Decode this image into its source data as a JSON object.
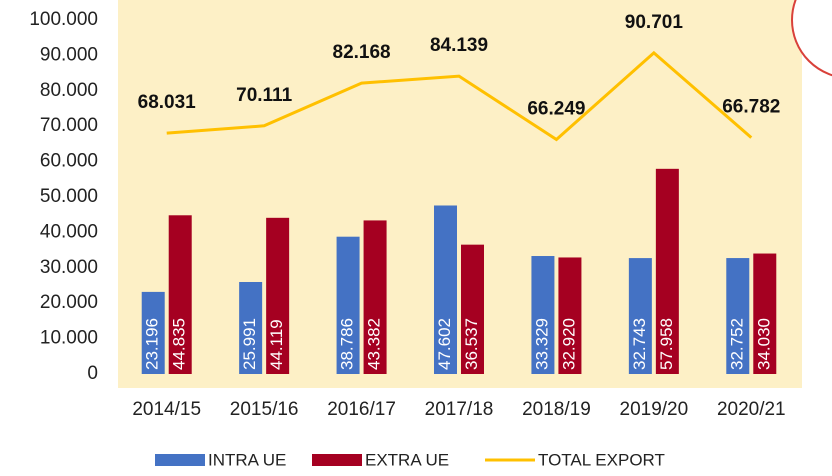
{
  "chart_data": {
    "type": "bar_line",
    "categories": [
      "2014/15",
      "2015/16",
      "2016/17",
      "2017/18",
      "2018/19",
      "2019/20",
      "2020/21"
    ],
    "series": [
      {
        "name": "INTRA UE",
        "type": "bar",
        "color": "#4472c4",
        "values": [
          23196,
          25991,
          38786,
          47602,
          33329,
          32743,
          32752
        ],
        "value_labels": [
          "23.196",
          "25.991",
          "38.786",
          "47.602",
          "33.329",
          "32.743",
          "32.752"
        ]
      },
      {
        "name": "EXTRA UE",
        "type": "bar",
        "color": "#a50021",
        "values": [
          44835,
          44119,
          43382,
          36537,
          32920,
          57958,
          34030
        ],
        "value_labels": [
          "44.835",
          "44.119",
          "43.382",
          "36.537",
          "32.920",
          "57.958",
          "34.030"
        ]
      },
      {
        "name": "TOTAL EXPORT",
        "type": "line",
        "color": "#ffc000",
        "values": [
          68031,
          70111,
          82168,
          84139,
          66249,
          90701,
          66782
        ],
        "value_labels": [
          "68.031",
          "70.111",
          "82.168",
          "84.139",
          "66.249",
          "90.701",
          "66.782"
        ]
      }
    ],
    "ylim": [
      0,
      100000
    ],
    "yticks": [
      0,
      {
        "value": 10000,
        "label": "10.000"
      },
      {
        "value": 20000,
        "label": "20.000"
      },
      {
        "value": 30000,
        "label": "30.000"
      },
      {
        "value": 40000,
        "label": "40.000"
      },
      {
        "value": 50000,
        "label": "50.000"
      },
      {
        "value": 60000,
        "label": "60.000"
      },
      {
        "value": 70000,
        "label": "70.000"
      },
      {
        "value": 80000,
        "label": "80.000"
      },
      {
        "value": 90000,
        "label": "90.000"
      },
      {
        "value": 100000,
        "label": "100.000"
      }
    ],
    "legend": "bottom"
  }
}
